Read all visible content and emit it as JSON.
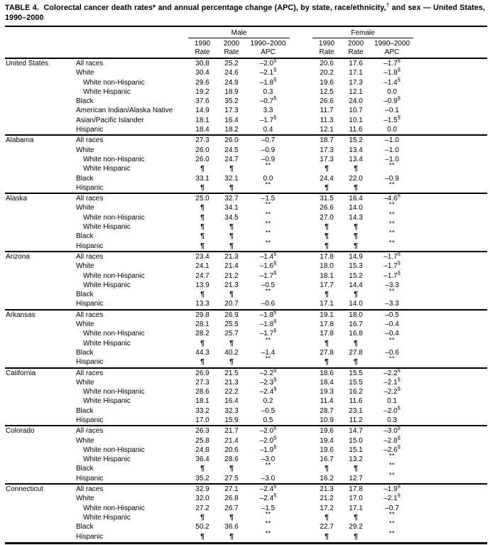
{
  "colors": {
    "text": "#000000",
    "background": "#ffffff"
  },
  "title": {
    "part1": "TABLE 4.  Colorectal cancer death rates* and annual percentage change (APC), by state, race/ethnicity,",
    "dagger": "†",
    "part2": " and sex — United States, 1990–2000"
  },
  "table": {
    "columns": {
      "male_label": "Male",
      "female_label": "Female",
      "sub_headers": [
        {
          "line1": "1990",
          "line2": "Rate"
        },
        {
          "line1": "2000",
          "line2": "Rate"
        },
        {
          "line1": "1990–2000",
          "line2": "APC"
        }
      ]
    },
    "states": [
      {
        "name": "United States",
        "rows": [
          {
            "race": "All races",
            "indent": false,
            "male": [
              "30.8",
              "25.2",
              "–2.0§"
            ],
            "female": [
              "20.6",
              "17.6",
              "–1.7§"
            ]
          },
          {
            "race": "White",
            "indent": false,
            "male": [
              "30.4",
              "24.6",
              "–2.1§"
            ],
            "female": [
              "20.2",
              "17.1",
              "–1.8§"
            ]
          },
          {
            "race": "White non-Hispanic",
            "indent": true,
            "male": [
              "29.6",
              "24.9",
              "–1.8§"
            ],
            "female": [
              "19.6",
              "17.3",
              "–1.4§"
            ]
          },
          {
            "race": "White Hispanic",
            "indent": true,
            "male": [
              "19.2",
              "18.9",
              "0.3"
            ],
            "female": [
              "12.5",
              "12.1",
              "0.0"
            ]
          },
          {
            "race": "Black",
            "indent": false,
            "male": [
              "37.6",
              "35.2",
              "–0.7§"
            ],
            "female": [
              "26.6",
              "24.0",
              "–0.9§"
            ]
          },
          {
            "race": "American Indian/Alaska Native",
            "indent": false,
            "male": [
              "14.9",
              "17.3",
              "3.3"
            ],
            "female": [
              "11.7",
              "10.7",
              "–0.1"
            ]
          },
          {
            "race": "Asian/Pacific Islander",
            "indent": false,
            "male": [
              "18.1",
              "16.4",
              "–1.7§"
            ],
            "female": [
              "11.3",
              "10.1",
              "–1.5§"
            ]
          },
          {
            "race": "Hispanic",
            "indent": false,
            "male": [
              "18.4",
              "18.2",
              "0.4"
            ],
            "female": [
              "12.1",
              "11.6",
              "0.0"
            ]
          }
        ]
      },
      {
        "name": "Alabama",
        "rows": [
          {
            "race": "All races",
            "indent": false,
            "male": [
              "27.3",
              "26.0",
              "–0.7"
            ],
            "female": [
              "18.7",
              "15.2",
              "–1.0"
            ]
          },
          {
            "race": "White",
            "indent": false,
            "male": [
              "26.0",
              "24.5",
              "–0.9"
            ],
            "female": [
              "17.3",
              "13.4",
              "–1.0"
            ]
          },
          {
            "race": "White non-Hispanic",
            "indent": true,
            "male": [
              "26.0",
              "24.7",
              "–0.9"
            ],
            "female": [
              "17.3",
              "13.4",
              "–1.0"
            ]
          },
          {
            "race": "White Hispanic",
            "indent": true,
            "male": [
              "¶",
              "¶",
              "**"
            ],
            "female": [
              "¶",
              "¶",
              "**"
            ]
          },
          {
            "race": "Black",
            "indent": false,
            "male": [
              "33.1",
              "32.1",
              "0.0"
            ],
            "female": [
              "24.4",
              "22.0",
              "–0.9"
            ]
          },
          {
            "race": "Hispanic",
            "indent": false,
            "male": [
              "¶",
              "¶",
              "**"
            ],
            "female": [
              "¶",
              "¶",
              "**"
            ]
          }
        ]
      },
      {
        "name": "Alaska",
        "rows": [
          {
            "race": "All races",
            "indent": false,
            "male": [
              "25.0",
              "32.7",
              "–1.5"
            ],
            "female": [
              "31.5",
              "16.4",
              "–4.6§"
            ]
          },
          {
            "race": "White",
            "indent": false,
            "male": [
              "¶",
              "34.1",
              "**"
            ],
            "female": [
              "26.6",
              "14.0",
              "**"
            ]
          },
          {
            "race": "White non-Hispanic",
            "indent": true,
            "male": [
              "¶",
              "34.5",
              "**"
            ],
            "female": [
              "27.0",
              "14.3",
              "**"
            ]
          },
          {
            "race": "White Hispanic",
            "indent": true,
            "male": [
              "¶",
              "¶",
              "**"
            ],
            "female": [
              "¶",
              "¶",
              "**"
            ]
          },
          {
            "race": "Black",
            "indent": false,
            "male": [
              "¶",
              "¶",
              "**"
            ],
            "female": [
              "¶",
              "¶",
              "**"
            ]
          },
          {
            "race": "Hispanic",
            "indent": false,
            "male": [
              "¶",
              "¶",
              "**"
            ],
            "female": [
              "¶",
              "¶",
              "**"
            ]
          }
        ]
      },
      {
        "name": "Arizona",
        "rows": [
          {
            "race": "All races",
            "indent": false,
            "male": [
              "23.4",
              "21.3",
              "–1.4§"
            ],
            "female": [
              "17.8",
              "14.9",
              "–1.7§"
            ]
          },
          {
            "race": "White",
            "indent": false,
            "male": [
              "24.1",
              "21.4",
              "–1.6§"
            ],
            "female": [
              "18.0",
              "15.3",
              "–1.7§"
            ]
          },
          {
            "race": "White non-Hispanic",
            "indent": true,
            "male": [
              "24.7",
              "21.2",
              "–1.7§"
            ],
            "female": [
              "18.1",
              "15.2",
              "–1.7§"
            ]
          },
          {
            "race": "White Hispanic",
            "indent": true,
            "male": [
              "13.9",
              "21.3",
              "–0.5"
            ],
            "female": [
              "17.7",
              "14.4",
              "–3.3"
            ]
          },
          {
            "race": "Black",
            "indent": false,
            "male": [
              "¶",
              "¶",
              "**"
            ],
            "female": [
              "¶",
              "¶",
              "**"
            ]
          },
          {
            "race": "Hispanic",
            "indent": false,
            "male": [
              "13.3",
              "20.7",
              "–0.6"
            ],
            "female": [
              "17.1",
              "14.0",
              "–3.3"
            ]
          }
        ]
      },
      {
        "name": "Arkansas",
        "rows": [
          {
            "race": "All races",
            "indent": false,
            "male": [
              "29.8",
              "26.9",
              "–1.8§"
            ],
            "female": [
              "19.1",
              "18.0",
              "–0.5"
            ]
          },
          {
            "race": "White",
            "indent": false,
            "male": [
              "28.1",
              "25.5",
              "–1.8§"
            ],
            "female": [
              "17.8",
              "16.7",
              "–0.4"
            ]
          },
          {
            "race": "White non-Hispanic",
            "indent": true,
            "male": [
              "28.2",
              "25.7",
              "–1.7§"
            ],
            "female": [
              "17.8",
              "16.8",
              "–0.4"
            ]
          },
          {
            "race": "White Hispanic",
            "indent": true,
            "male": [
              "¶",
              "¶",
              "**"
            ],
            "female": [
              "¶",
              "¶",
              "**"
            ]
          },
          {
            "race": "Black",
            "indent": false,
            "male": [
              "44.3",
              "40.2",
              "–1.4"
            ],
            "female": [
              "27.8",
              "27.8",
              "–0.6"
            ]
          },
          {
            "race": "Hispanic",
            "indent": false,
            "male": [
              "¶",
              "¶",
              "**"
            ],
            "female": [
              "¶",
              "¶",
              "**"
            ]
          }
        ]
      },
      {
        "name": "California",
        "rows": [
          {
            "race": "All races",
            "indent": false,
            "male": [
              "26.9",
              "21.5",
              "–2.2§"
            ],
            "female": [
              "18.6",
              "15.5",
              "–2.2§"
            ]
          },
          {
            "race": "White",
            "indent": false,
            "male": [
              "27.3",
              "21.3",
              "–2.3§"
            ],
            "female": [
              "18.4",
              "15.5",
              "–2.1§"
            ]
          },
          {
            "race": "White non-Hispanic",
            "indent": true,
            "male": [
              "28.6",
              "22.2",
              "–2.4§"
            ],
            "female": [
              "19.3",
              "16.2",
              "–2.2§"
            ]
          },
          {
            "race": "White Hispanic",
            "indent": true,
            "male": [
              "18.1",
              "16.4",
              "0.2"
            ],
            "female": [
              "11.4",
              "11.6",
              "0.1"
            ]
          },
          {
            "race": "Black",
            "indent": false,
            "male": [
              "33.2",
              "32.3",
              "–0.5"
            ],
            "female": [
              "28.7",
              "23.1",
              "–2.0§"
            ]
          },
          {
            "race": "Hispanic",
            "indent": false,
            "male": [
              "17.0",
              "15.9",
              "0.5"
            ],
            "female": [
              "10.9",
              "11.2",
              "0.3"
            ]
          }
        ]
      },
      {
        "name": "Colorado",
        "rows": [
          {
            "race": "All races",
            "indent": false,
            "male": [
              "26.3",
              "21.7",
              "–2.0§"
            ],
            "female": [
              "19.6",
              "14.7",
              "–3.0§"
            ]
          },
          {
            "race": "White",
            "indent": false,
            "male": [
              "25.8",
              "21.4",
              "–2.0§"
            ],
            "female": [
              "19.4",
              "15.0",
              "–2.8§"
            ]
          },
          {
            "race": "White non-Hispanic",
            "indent": true,
            "male": [
              "24.8",
              "20.6",
              "–1.9§"
            ],
            "female": [
              "19.6",
              "15.1",
              "–2.6§"
            ]
          },
          {
            "race": "White Hispanic",
            "indent": true,
            "male": [
              "36.4",
              "28.6",
              "–3.0"
            ],
            "female": [
              "16.7",
              "13.2",
              "**"
            ]
          },
          {
            "race": "Black",
            "indent": false,
            "male": [
              "¶",
              "¶",
              "**"
            ],
            "female": [
              "¶",
              "¶",
              "**"
            ]
          },
          {
            "race": "Hispanic",
            "indent": false,
            "male": [
              "35.2",
              "27.5",
              "–3.0"
            ],
            "female": [
              "16.2",
              "12.7",
              "**"
            ]
          }
        ]
      },
      {
        "name": "Connecticut",
        "rows": [
          {
            "race": "All races",
            "indent": false,
            "male": [
              "32.9",
              "27.1",
              "–2.4§"
            ],
            "female": [
              "21.3",
              "17.8",
              "–1.9§"
            ]
          },
          {
            "race": "White",
            "indent": false,
            "male": [
              "32.0",
              "26.8",
              "–2.4§"
            ],
            "female": [
              "21.2",
              "17.0",
              "–2.1§"
            ]
          },
          {
            "race": "White non-Hispanic",
            "indent": true,
            "male": [
              "27.2",
              "26.7",
              "–1.5"
            ],
            "female": [
              "17.2",
              "17.1",
              "–0.7"
            ]
          },
          {
            "race": "White Hispanic",
            "indent": true,
            "male": [
              "¶",
              "¶",
              "**"
            ],
            "female": [
              "¶",
              "¶",
              "**"
            ]
          },
          {
            "race": "Black",
            "indent": false,
            "male": [
              "50.2",
              "36.6",
              "**"
            ],
            "female": [
              "22.7",
              "29.2",
              "**"
            ]
          },
          {
            "race": "Hispanic",
            "indent": false,
            "male": [
              "¶",
              "¶",
              "**"
            ],
            "female": [
              "¶",
              "¶",
              "**"
            ]
          }
        ]
      }
    ]
  }
}
